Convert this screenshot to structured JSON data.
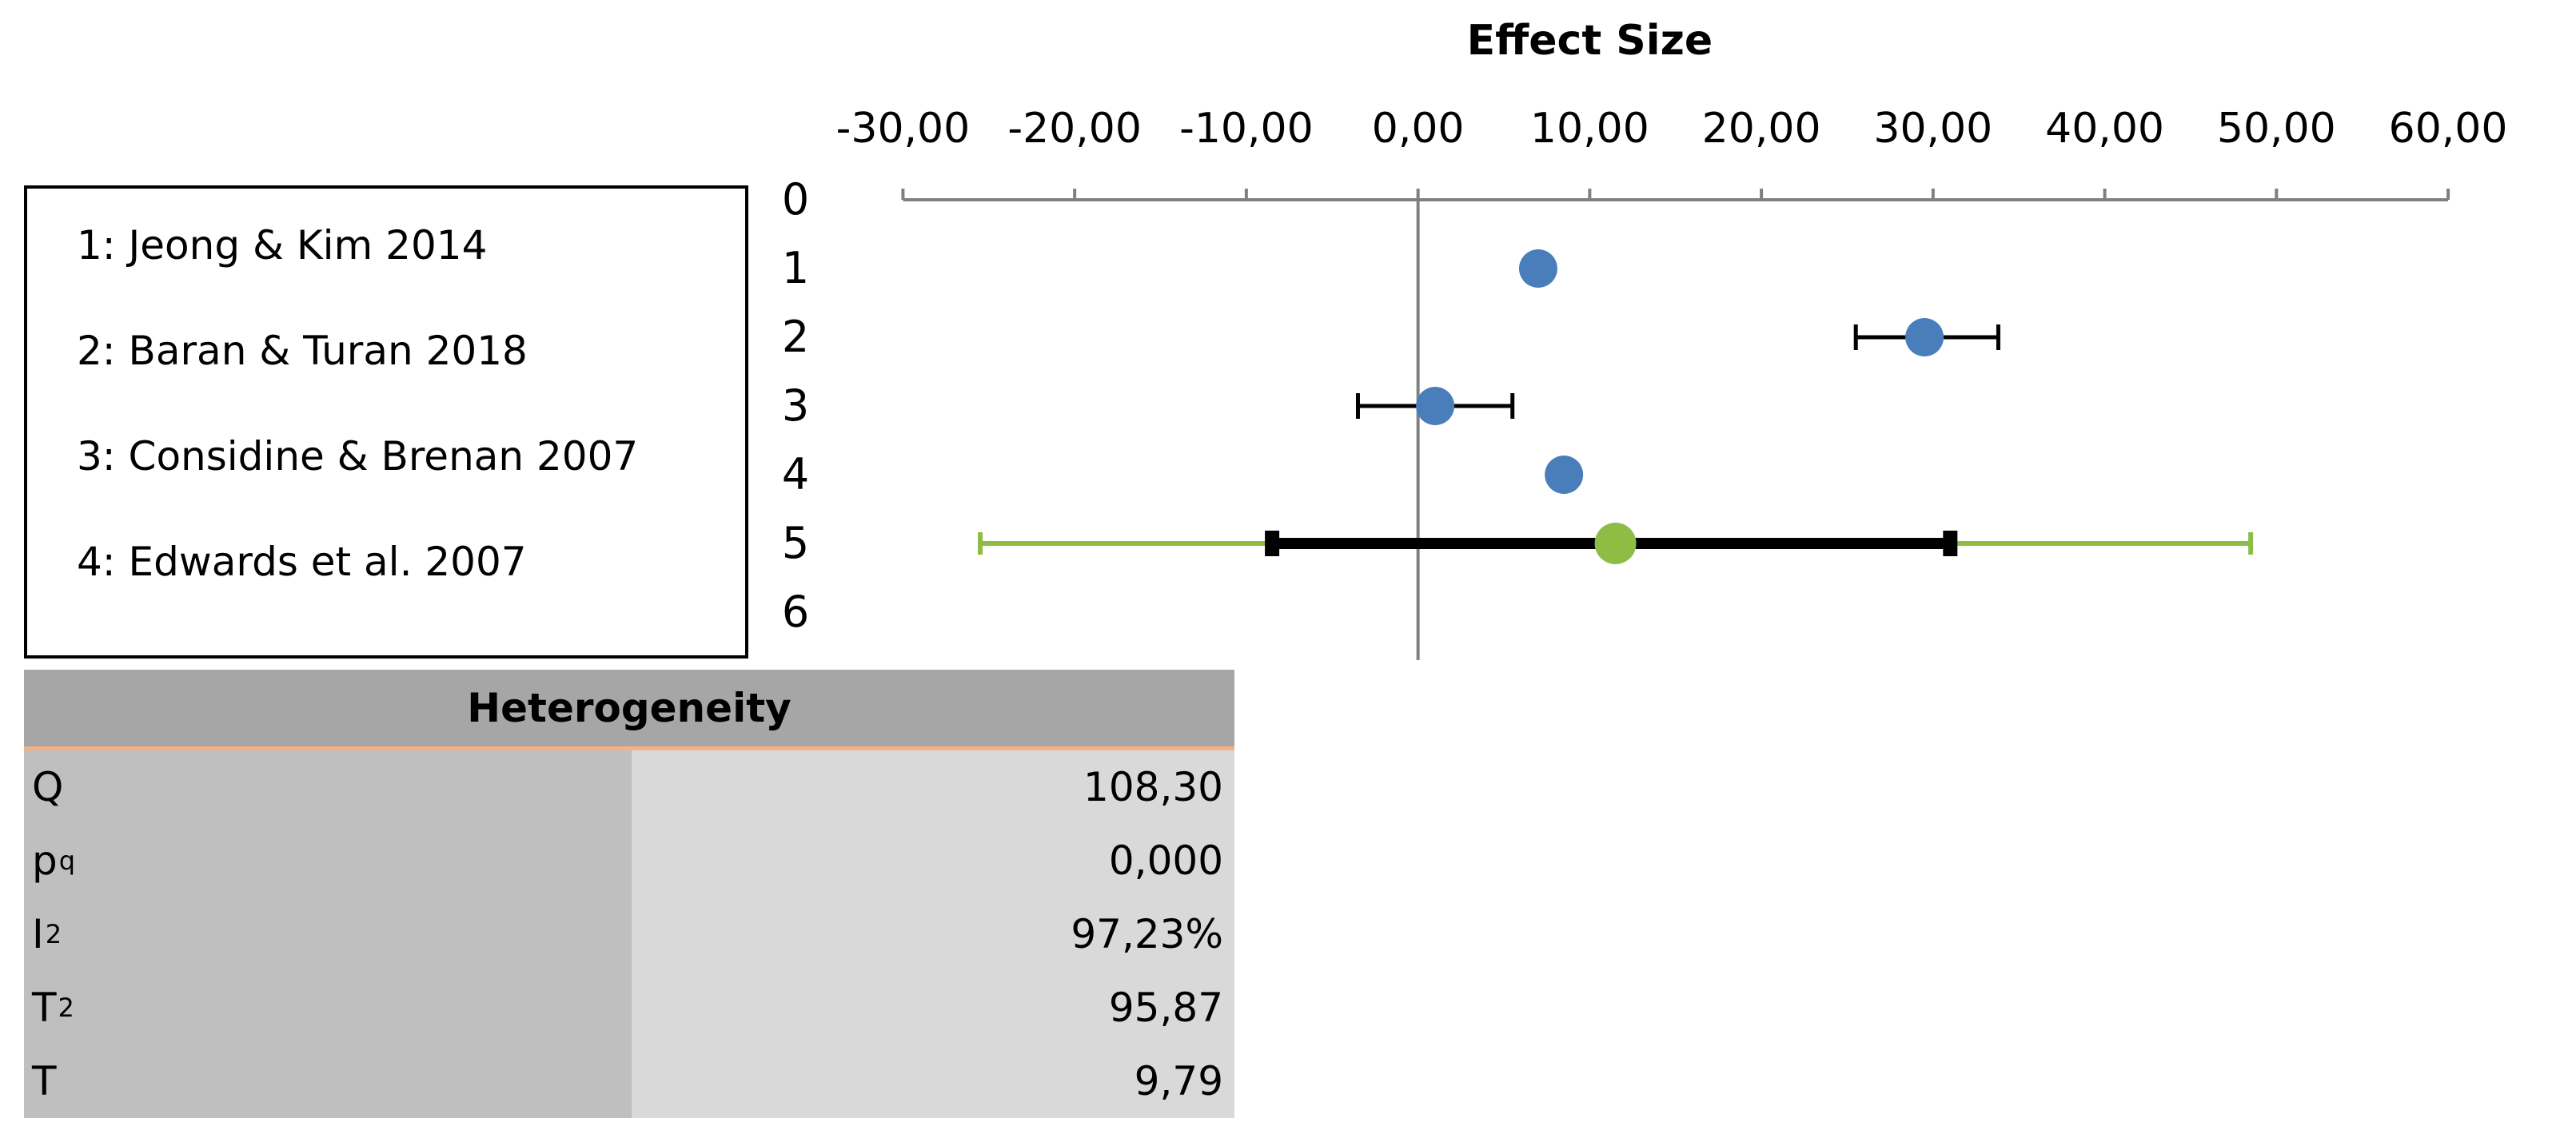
{
  "chart_data": {
    "type": "scatter",
    "subtype": "forest-plot",
    "title": "Effect Size",
    "x_ticks": [
      -30,
      -20,
      -10,
      0,
      10,
      20,
      30,
      40,
      50,
      60
    ],
    "x_tick_labels": [
      "-30,00",
      "-20,00",
      "-10,00",
      "0,00",
      "10,00",
      "20,00",
      "30,00",
      "40,00",
      "50,00",
      "60,00"
    ],
    "xlim": [
      -33,
      62
    ],
    "y_ticks": [
      0,
      1,
      2,
      3,
      4,
      5,
      6
    ],
    "y_tick_labels": [
      "0",
      "1",
      "2",
      "3",
      "4",
      "5",
      "6"
    ],
    "ylim": [
      0,
      6.7
    ],
    "reference_line_x": 0,
    "studies": [
      {
        "y": 1,
        "effect": 7.0,
        "ci_low": null,
        "ci_high": null
      },
      {
        "y": 2,
        "effect": 29.5,
        "ci_low": 25.5,
        "ci_high": 33.8
      },
      {
        "y": 3,
        "effect": 1.0,
        "ci_low": -3.5,
        "ci_high": 5.5
      },
      {
        "y": 4,
        "effect": 8.5,
        "ci_low": null,
        "ci_high": null
      }
    ],
    "summary": {
      "y": 5,
      "effect": 11.5,
      "ci_low": -8.5,
      "ci_high": 31.0,
      "pi_low": -25.5,
      "pi_high": 48.5
    },
    "colors": {
      "study_point": "#4a7ebb",
      "summary_point": "#8fbc45",
      "prediction_interval": "#8fbc45",
      "confidence_interval": "#000000",
      "axis": "#808080"
    }
  },
  "legend": {
    "items": [
      "1: Jeong & Kim 2014",
      "2: Baran & Turan 2018",
      "3: Considine & Brenan 2007",
      "4: Edwards et al. 2007"
    ]
  },
  "heterogeneity": {
    "title": "Heterogeneity",
    "rows": [
      {
        "label": "Q",
        "sub": "",
        "sup": "",
        "value": "108,30"
      },
      {
        "label": "p",
        "sub": "q",
        "sup": "",
        "value": "0,000"
      },
      {
        "label": "I",
        "sub": "",
        "sup": "2",
        "value": "97,23%"
      },
      {
        "label": "T",
        "sub": "",
        "sup": "2",
        "value": "95,87"
      },
      {
        "label": "T",
        "sub": "",
        "sup": "",
        "value": "9,79"
      }
    ]
  }
}
